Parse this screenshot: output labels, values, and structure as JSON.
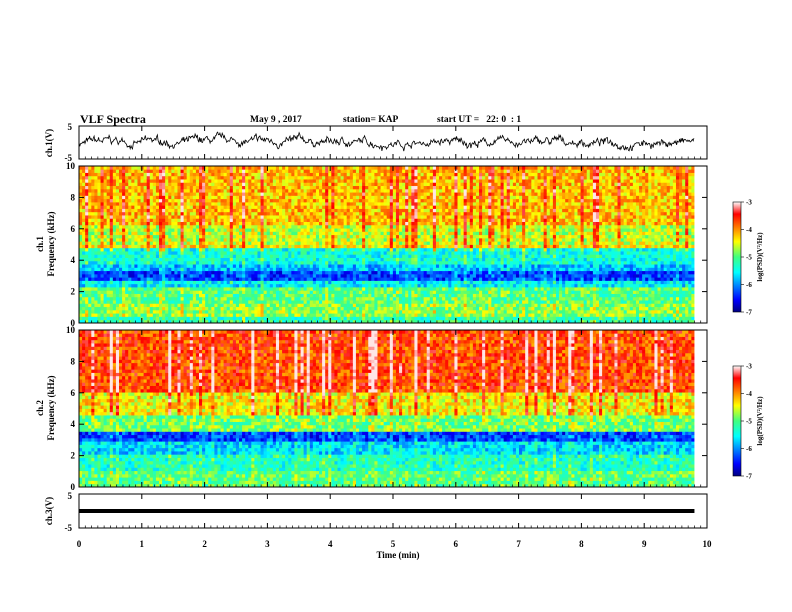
{
  "header": {
    "title": "VLF Spectra",
    "date": "May 9 , 2017",
    "station": "station= KAP",
    "start": "start UT =   22: 0  : 1"
  },
  "chart_data": [
    {
      "type": "line",
      "panel": "ch1-waveform",
      "ylabel": "ch.1(V)",
      "ylim": [
        -5,
        5
      ],
      "yticks": [
        5,
        -5
      ],
      "xlim": [
        0,
        10
      ],
      "series": [
        {
          "values_description_omitted": true
        }
      ]
    },
    {
      "type": "heatmap",
      "panel": "ch1-spectrogram",
      "ylabel": "ch.1\nFrequency (kHz)",
      "ylabel_line1": "ch.1",
      "ylabel_line2": "Frequency (kHz)",
      "ylim": [
        0,
        10
      ],
      "yticks": [
        0,
        2,
        4,
        6,
        8,
        10
      ],
      "xlim": [
        0,
        9.8
      ],
      "colorbar": {
        "label": "log(PSD)(V²/Hz)",
        "range": [
          -7,
          -3
        ],
        "ticks": [
          -3,
          -4,
          -5,
          -6,
          -7
        ]
      },
      "bands": [
        {
          "from": 0,
          "to": 0.5,
          "level": -5.2
        },
        {
          "from": 0.5,
          "to": 1.2,
          "level": -4.8
        },
        {
          "from": 1.2,
          "to": 2.3,
          "level": -5.0
        },
        {
          "from": 2.3,
          "to": 2.7,
          "level": -5.6
        },
        {
          "from": 2.7,
          "to": 3.4,
          "level": -6.3
        },
        {
          "from": 3.4,
          "to": 3.7,
          "level": -5.8
        },
        {
          "from": 3.7,
          "to": 4.8,
          "level": -5.4
        },
        {
          "from": 4.8,
          "to": 5.1,
          "level": -4.4
        },
        {
          "from": 5.1,
          "to": 6.3,
          "level": -4.6
        },
        {
          "from": 6.3,
          "to": 10,
          "level": -4.2
        }
      ]
    },
    {
      "type": "heatmap",
      "panel": "ch2-spectrogram",
      "ylabel_line1": "ch.2",
      "ylabel_line2": "Frequency (kHz)",
      "ylim": [
        0,
        10
      ],
      "yticks": [
        0,
        2,
        4,
        6,
        8,
        10
      ],
      "xlim": [
        0,
        9.8
      ],
      "colorbar": {
        "label": "log(PSD)(V²/Hz)",
        "range": [
          -7,
          -3
        ],
        "ticks": [
          -3,
          -4,
          -5,
          -6,
          -7
        ]
      },
      "bands": [
        {
          "from": 0,
          "to": 1.0,
          "level": -5.0
        },
        {
          "from": 1.0,
          "to": 2.0,
          "level": -5.3
        },
        {
          "from": 2.0,
          "to": 3.0,
          "level": -5.7
        },
        {
          "from": 3.0,
          "to": 3.6,
          "level": -6.3
        },
        {
          "from": 3.6,
          "to": 4.6,
          "level": -4.9
        },
        {
          "from": 4.6,
          "to": 6.0,
          "level": -4.4
        },
        {
          "from": 6.0,
          "to": 10,
          "level": -3.7
        }
      ]
    },
    {
      "type": "line",
      "panel": "ch3-waveform",
      "ylabel": "ch.3(V)",
      "ylim": [
        -5,
        5
      ],
      "yticks": [
        5,
        -5
      ],
      "xlabel": "Time  (min)",
      "xlim": [
        0,
        10
      ],
      "xticks": [
        0,
        1,
        2,
        3,
        4,
        5,
        6,
        7,
        8,
        9,
        10
      ],
      "series": [
        {
          "values": [
            0,
            0
          ],
          "x": [
            0,
            9.8
          ]
        }
      ]
    }
  ]
}
